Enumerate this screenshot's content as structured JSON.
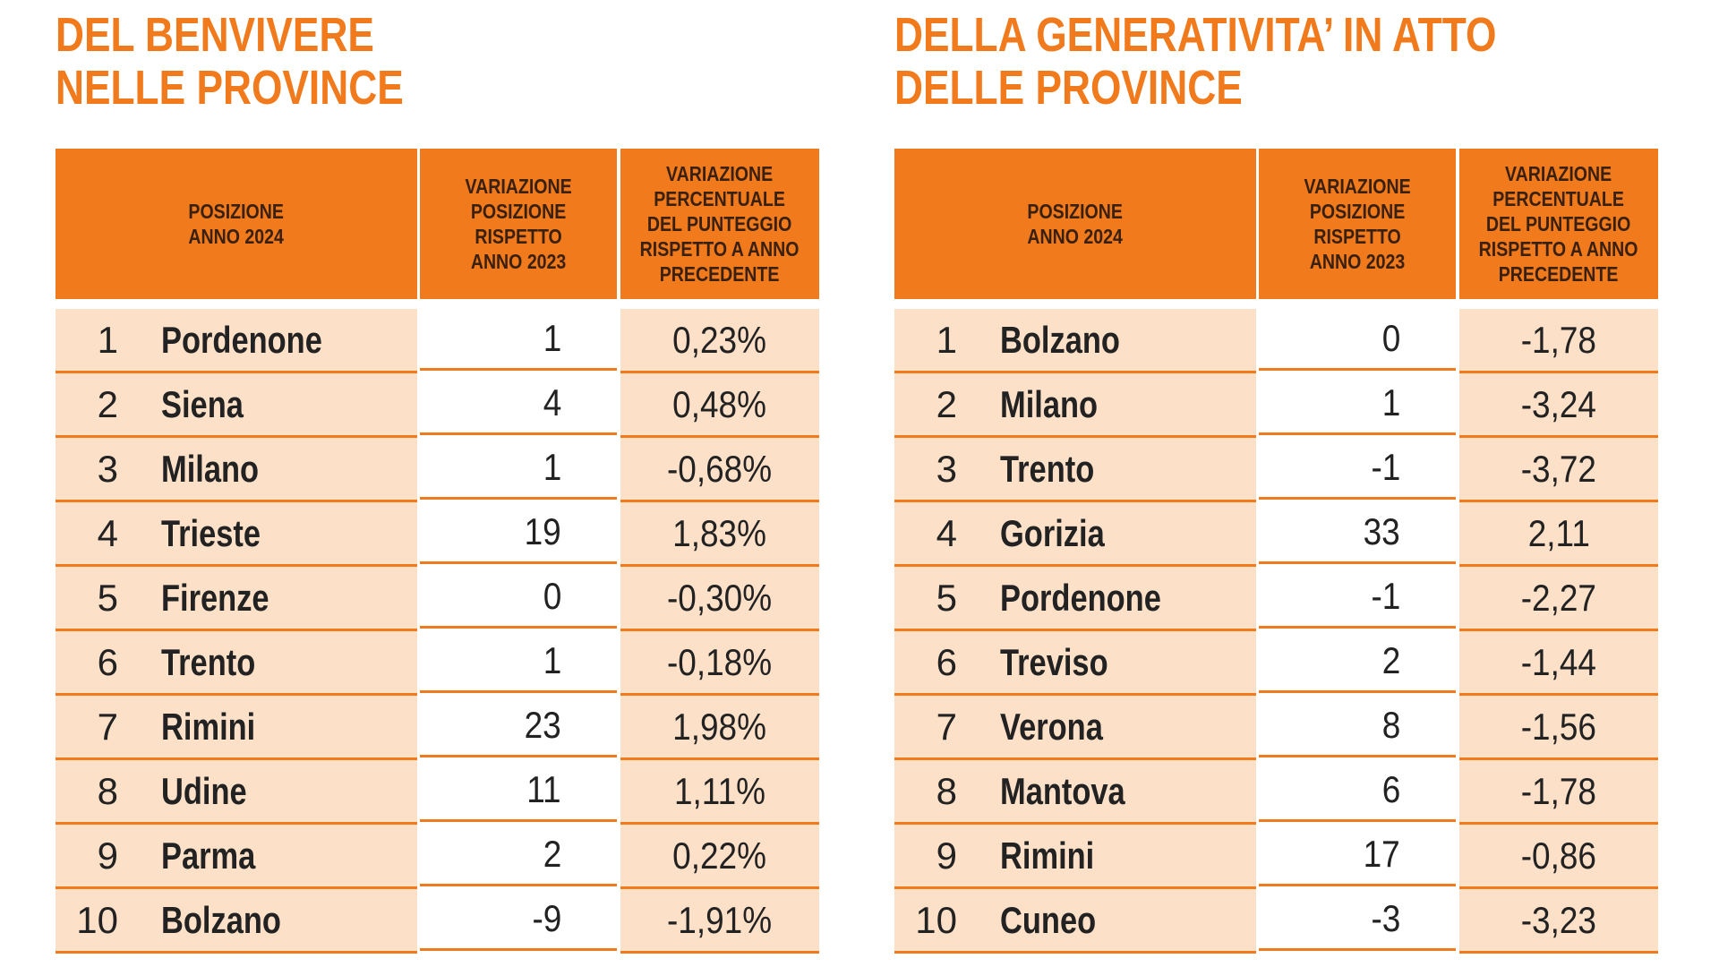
{
  "left": {
    "title": [
      "DEL BENVIVERE",
      "NELLE PROVINCE"
    ],
    "headers": [
      "POSIZIONE\nANNO 2024",
      "VARIAZIONE\nPOSIZIONE\nRISPETTO\nANNO 2023",
      "VARIAZIONE\nPERCENTUALE\nDEL PUNTEGGIO\nRISPETTO A ANNO\nPRECEDENTE"
    ],
    "rows": [
      [
        "1",
        "Pordenone",
        "1",
        "0,23%"
      ],
      [
        "2",
        "Siena",
        "4",
        "0,48%"
      ],
      [
        "3",
        "Milano",
        "1",
        "-0,68%"
      ],
      [
        "4",
        "Trieste",
        "19",
        "1,83%"
      ],
      [
        "5",
        "Firenze",
        "0",
        "-0,30%"
      ],
      [
        "6",
        "Trento",
        "1",
        "-0,18%"
      ],
      [
        "7",
        "Rimini",
        "23",
        "1,98%"
      ],
      [
        "8",
        "Udine",
        "11",
        "1,11%"
      ],
      [
        "9",
        "Parma",
        "2",
        "0,22%"
      ],
      [
        "10",
        "Bolzano",
        "-9",
        "-1,91%"
      ]
    ]
  },
  "right": {
    "title": [
      "DELLA GENERATIVITA’ IN ATTO",
      "DELLE PROVINCE"
    ],
    "headers": [
      "POSIZIONE\nANNO 2024",
      "VARIAZIONE\nPOSIZIONE\nRISPETTO\nANNO 2023",
      "VARIAZIONE\nPERCENTUALE\nDEL PUNTEGGIO\nRISPETTO A ANNO\nPRECEDENTE"
    ],
    "rows": [
      [
        "1",
        "Bolzano",
        "0",
        "-1,78"
      ],
      [
        "2",
        "Milano",
        "1",
        "-3,24"
      ],
      [
        "3",
        "Trento",
        "-1",
        "-3,72"
      ],
      [
        "4",
        "Gorizia",
        "33",
        "2,11"
      ],
      [
        "5",
        "Pordenone",
        "-1",
        "-2,27"
      ],
      [
        "6",
        "Treviso",
        "2",
        "-1,44"
      ],
      [
        "7",
        "Verona",
        "8",
        "-1,56"
      ],
      [
        "8",
        "Mantova",
        "6",
        "-1,78"
      ],
      [
        "9",
        "Rimini",
        "17",
        "-0,86"
      ],
      [
        "10",
        "Cuneo",
        "-3",
        "-3,23"
      ]
    ]
  }
}
